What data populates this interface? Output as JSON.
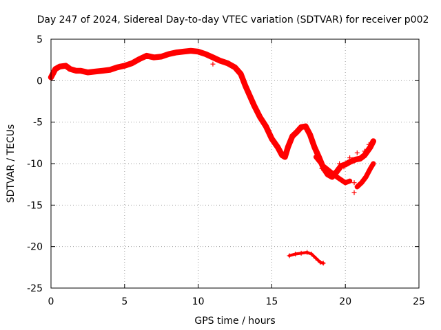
{
  "chart_data": {
    "type": "scatter",
    "title": "Day 247 of 2024, Sidereal Day-to-day VTEC variation (SDTVAR) for receiver p002",
    "xlabel": "GPS time / hours",
    "ylabel": "SDTVAR / TECUs",
    "xlim": [
      0,
      25
    ],
    "ylim": [
      -25,
      5
    ],
    "xticks": [
      "0",
      "5",
      "10",
      "15",
      "20",
      "25"
    ],
    "yticks": [
      "5",
      "0",
      "-5",
      "-10",
      "-15",
      "-20",
      "-25"
    ],
    "xtick_values": [
      0,
      5,
      10,
      15,
      20,
      25
    ],
    "ytick_values": [
      5,
      0,
      -5,
      -10,
      -15,
      -20,
      -25
    ],
    "grid": true,
    "marker": "+",
    "color": "#ff0000",
    "series": [
      {
        "name": "main-trace",
        "band": 0.7,
        "points": [
          [
            0.0,
            0.4
          ],
          [
            0.3,
            1.4
          ],
          [
            0.6,
            1.7
          ],
          [
            1.0,
            1.8
          ],
          [
            1.3,
            1.4
          ],
          [
            1.7,
            1.2
          ],
          [
            2.0,
            1.2
          ],
          [
            2.5,
            1.0
          ],
          [
            3.0,
            1.1
          ],
          [
            3.5,
            1.2
          ],
          [
            4.0,
            1.3
          ],
          [
            4.5,
            1.6
          ],
          [
            5.0,
            1.8
          ],
          [
            5.5,
            2.1
          ],
          [
            6.0,
            2.6
          ],
          [
            6.5,
            3.0
          ],
          [
            7.0,
            2.8
          ],
          [
            7.5,
            2.9
          ],
          [
            8.0,
            3.2
          ],
          [
            8.5,
            3.4
          ],
          [
            9.0,
            3.5
          ],
          [
            9.5,
            3.6
          ],
          [
            10.0,
            3.5
          ],
          [
            10.5,
            3.2
          ],
          [
            11.0,
            2.8
          ],
          [
            11.5,
            2.4
          ],
          [
            12.0,
            2.1
          ],
          [
            12.5,
            1.6
          ],
          [
            12.9,
            0.8
          ],
          [
            13.2,
            -0.6
          ],
          [
            13.5,
            -1.8
          ],
          [
            13.8,
            -3.0
          ],
          [
            14.2,
            -4.4
          ],
          [
            14.6,
            -5.5
          ],
          [
            15.0,
            -7.0
          ],
          [
            15.4,
            -8.0
          ],
          [
            15.7,
            -9.0
          ],
          [
            15.9,
            -9.2
          ],
          [
            16.1,
            -8.0
          ],
          [
            16.4,
            -6.7
          ],
          [
            16.7,
            -6.2
          ],
          [
            17.0,
            -5.6
          ],
          [
            17.3,
            -5.5
          ],
          [
            17.6,
            -6.5
          ],
          [
            17.9,
            -8.0
          ],
          [
            18.2,
            -9.2
          ],
          [
            18.5,
            -10.5
          ],
          [
            18.8,
            -11.3
          ],
          [
            19.1,
            -11.6
          ],
          [
            19.4,
            -11.0
          ],
          [
            19.7,
            -10.3
          ],
          [
            20.0,
            -10.1
          ],
          [
            20.3,
            -9.8
          ],
          [
            20.7,
            -9.5
          ],
          [
            21.0,
            -9.4
          ],
          [
            21.3,
            -9.0
          ],
          [
            21.7,
            -8.0
          ],
          [
            21.9,
            -7.3
          ]
        ]
      },
      {
        "name": "lower-branch",
        "band": 0.6,
        "points": [
          [
            18.0,
            -9.2
          ],
          [
            18.5,
            -10.3
          ],
          [
            19.0,
            -11.0
          ],
          [
            19.5,
            -11.7
          ],
          [
            20.0,
            -12.3
          ],
          [
            20.3,
            -12.1
          ]
        ]
      },
      {
        "name": "late-recovery",
        "band": 0.6,
        "points": [
          [
            20.8,
            -12.8
          ],
          [
            21.1,
            -12.3
          ],
          [
            21.4,
            -11.6
          ],
          [
            21.7,
            -10.6
          ],
          [
            21.9,
            -10.0
          ]
        ]
      },
      {
        "name": "isolated-segment",
        "band": 0.35,
        "points": [
          [
            16.2,
            -21.1
          ],
          [
            16.6,
            -20.9
          ],
          [
            17.0,
            -20.8
          ],
          [
            17.4,
            -20.7
          ],
          [
            17.7,
            -20.9
          ],
          [
            18.0,
            -21.4
          ],
          [
            18.3,
            -21.9
          ],
          [
            18.5,
            -22.0
          ]
        ]
      }
    ],
    "scattered_points": [
      [
        20.3,
        -9.3
      ],
      [
        20.5,
        -9.5
      ],
      [
        20.8,
        -8.7
      ],
      [
        21.0,
        -9.4
      ],
      [
        21.3,
        -8.5
      ],
      [
        20.6,
        -12.3
      ],
      [
        20.6,
        -13.5
      ],
      [
        20.1,
        -10.0
      ],
      [
        19.9,
        -10.4
      ],
      [
        10.6,
        3.2
      ],
      [
        11.0,
        2.0
      ],
      [
        18.4,
        -10.6
      ],
      [
        19.6,
        -10.0
      ],
      [
        21.6,
        -7.7
      ]
    ]
  }
}
